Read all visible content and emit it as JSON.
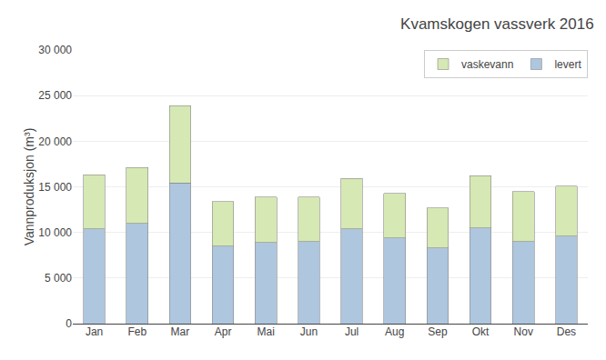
{
  "chart_data": {
    "type": "bar",
    "title": "Kvamskogen vassverk 2016",
    "ylabel": "Vannproduksjon (m³)",
    "categories": [
      "Jan",
      "Feb",
      "Mar",
      "Apr",
      "Mai",
      "Jun",
      "Jul",
      "Aug",
      "Sep",
      "Okt",
      "Nov",
      "Des"
    ],
    "series": [
      {
        "name": "levert",
        "color": "#aec6de",
        "values": [
          10400,
          11000,
          15400,
          8500,
          8900,
          9000,
          10400,
          9400,
          8300,
          10500,
          9000,
          9600
        ]
      },
      {
        "name": "vaskevann",
        "color": "#d6e8b4",
        "values": [
          5900,
          6100,
          8500,
          4900,
          5000,
          4900,
          5500,
          4900,
          4400,
          5700,
          5500,
          5500
        ]
      }
    ],
    "stacked": true,
    "ylim": [
      0,
      30000
    ],
    "yticks": [
      0,
      {
        "value": 5000,
        "label": "5 000"
      },
      {
        "value": 10000,
        "label": "10 000"
      },
      {
        "value": 15000,
        "label": "15 000"
      },
      {
        "value": 20000,
        "label": "20 000"
      },
      {
        "value": 25000,
        "label": "25 000"
      },
      {
        "value": 30000,
        "label": "30 000"
      }
    ],
    "grid": true,
    "legend": "upper right"
  }
}
